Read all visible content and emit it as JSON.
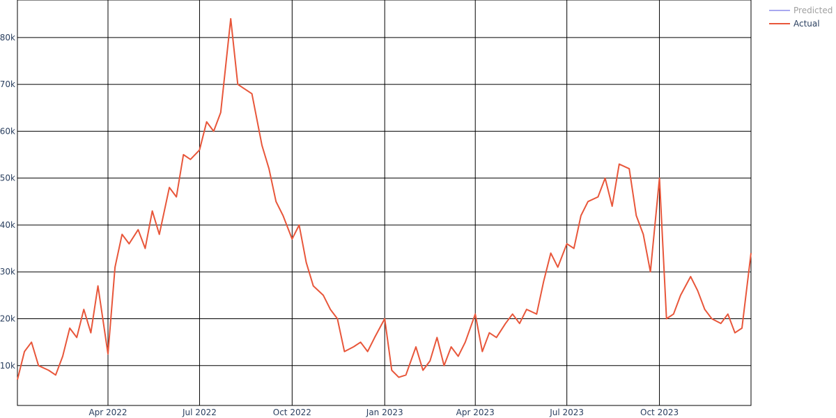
{
  "chart_data": {
    "type": "line",
    "title": "",
    "xlabel": "",
    "ylabel": "",
    "x_range": [
      "2022-01-01",
      "2023-12-31"
    ],
    "ylim": [
      1500,
      88000
    ],
    "grid": true,
    "legend_position": "top-right",
    "x_ticks": [
      {
        "date": "2022-04-01",
        "label": "Apr 2022"
      },
      {
        "date": "2022-07-01",
        "label": "Jul 2022"
      },
      {
        "date": "2022-10-01",
        "label": "Oct 2022"
      },
      {
        "date": "2023-01-01",
        "label": "Jan 2023"
      },
      {
        "date": "2023-04-01",
        "label": "Apr 2023"
      },
      {
        "date": "2023-07-01",
        "label": "Jul 2023"
      },
      {
        "date": "2023-10-01",
        "label": "Oct 2023"
      }
    ],
    "y_ticks": [
      {
        "value": 10000,
        "label": "10k"
      },
      {
        "value": 20000,
        "label": "20k"
      },
      {
        "value": 30000,
        "label": "30k"
      },
      {
        "value": 40000,
        "label": "40k"
      },
      {
        "value": 50000,
        "label": "50k"
      },
      {
        "value": 60000,
        "label": "60k"
      },
      {
        "value": 70000,
        "label": "70k"
      },
      {
        "value": 80000,
        "label": "80k"
      }
    ],
    "series": [
      {
        "name": "Predicted",
        "color": "#a8a8f0",
        "x": [],
        "y": []
      },
      {
        "name": "Actual",
        "color": "#e8563a",
        "x": [
          "2022-01-01",
          "2022-01-08",
          "2022-01-15",
          "2022-01-22",
          "2022-02-01",
          "2022-02-08",
          "2022-02-15",
          "2022-02-22",
          "2022-03-01",
          "2022-03-08",
          "2022-03-15",
          "2022-03-22",
          "2022-04-01",
          "2022-04-08",
          "2022-04-15",
          "2022-04-22",
          "2022-05-01",
          "2022-05-08",
          "2022-05-15",
          "2022-05-22",
          "2022-06-01",
          "2022-06-08",
          "2022-06-15",
          "2022-06-22",
          "2022-07-01",
          "2022-07-08",
          "2022-07-15",
          "2022-07-22",
          "2022-08-01",
          "2022-08-08",
          "2022-08-15",
          "2022-08-22",
          "2022-09-01",
          "2022-09-08",
          "2022-09-15",
          "2022-09-22",
          "2022-10-01",
          "2022-10-08",
          "2022-10-15",
          "2022-10-22",
          "2022-11-01",
          "2022-11-08",
          "2022-11-15",
          "2022-11-22",
          "2022-12-01",
          "2022-12-08",
          "2022-12-15",
          "2022-12-22",
          "2023-01-01",
          "2023-01-08",
          "2023-01-15",
          "2023-01-22",
          "2023-02-01",
          "2023-02-08",
          "2023-02-15",
          "2023-02-22",
          "2023-03-01",
          "2023-03-08",
          "2023-03-15",
          "2023-03-22",
          "2023-04-01",
          "2023-04-08",
          "2023-04-15",
          "2023-04-22",
          "2023-05-01",
          "2023-05-08",
          "2023-05-15",
          "2023-05-22",
          "2023-06-01",
          "2023-06-08",
          "2023-06-15",
          "2023-06-22",
          "2023-07-01",
          "2023-07-08",
          "2023-07-15",
          "2023-07-22",
          "2023-08-01",
          "2023-08-08",
          "2023-08-15",
          "2023-08-22",
          "2023-09-01",
          "2023-09-08",
          "2023-09-15",
          "2023-09-22",
          "2023-10-01",
          "2023-10-08",
          "2023-10-15",
          "2023-10-22",
          "2023-11-01",
          "2023-11-08",
          "2023-11-15",
          "2023-11-22",
          "2023-12-01",
          "2023-12-08",
          "2023-12-15",
          "2023-12-22",
          "2023-12-31"
        ],
        "y": [
          7000,
          13000,
          15000,
          10000,
          9000,
          8000,
          12000,
          18000,
          16000,
          22000,
          17000,
          27000,
          12500,
          31000,
          38000,
          36000,
          39000,
          35000,
          43000,
          38000,
          48000,
          46000,
          55000,
          54000,
          56000,
          62000,
          60000,
          64000,
          84000,
          70000,
          69000,
          68000,
          57000,
          52000,
          45000,
          42000,
          37000,
          40000,
          32000,
          27000,
          25000,
          22000,
          20000,
          13000,
          14000,
          15000,
          13000,
          16000,
          20000,
          9000,
          7500,
          8000,
          14000,
          9000,
          11000,
          16000,
          10000,
          14000,
          12000,
          15000,
          21000,
          13000,
          17000,
          16000,
          19000,
          21000,
          19000,
          22000,
          21000,
          28000,
          34000,
          31000,
          36000,
          35000,
          42000,
          45000,
          46000,
          50000,
          44000,
          53000,
          52000,
          42000,
          38000,
          30000,
          50000,
          20000,
          21000,
          25000,
          29000,
          26000,
          22000,
          20000,
          19000,
          21000,
          17000,
          18000,
          34000
        ]
      }
    ]
  }
}
